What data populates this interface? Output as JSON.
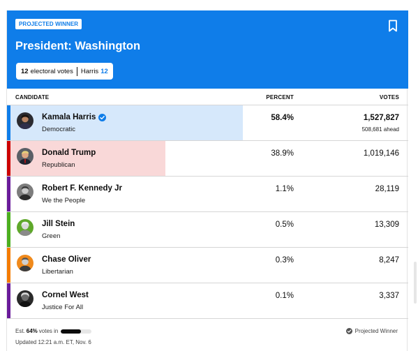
{
  "header": {
    "badge": "PROJECTED WINNER",
    "title": "President: Washington",
    "electoral_votes_count": "12",
    "electoral_votes_label": "electoral votes",
    "winner_name": "Harris",
    "winner_votes": "12"
  },
  "columns": {
    "candidate": "CANDIDATE",
    "percent": "PERCENT",
    "votes": "VOTES"
  },
  "candidates": [
    {
      "name": "Kamala Harris",
      "party": "Democratic",
      "percent": "58.4%",
      "votes": "1,527,827",
      "ahead": "508,681 ahead",
      "pct_value": 58.4,
      "color": "#0f7de9",
      "bar_color": "#d6e8fb"
    },
    {
      "name": "Donald Trump",
      "party": "Republican",
      "percent": "38.9%",
      "votes": "1,019,146",
      "pct_value": 38.9,
      "color": "#cc0000",
      "bar_color": "#f9d8d8"
    },
    {
      "name": "Robert F. Kennedy Jr",
      "party": "We the People",
      "percent": "1.1%",
      "votes": "28,119",
      "pct_value": 1.1,
      "color": "#6a1b9a"
    },
    {
      "name": "Jill Stein",
      "party": "Green",
      "percent": "0.5%",
      "votes": "13,309",
      "pct_value": 0.5,
      "color": "#4caf1f"
    },
    {
      "name": "Chase Oliver",
      "party": "Libertarian",
      "percent": "0.3%",
      "votes": "8,247",
      "pct_value": 0.3,
      "color": "#f57c00"
    },
    {
      "name": "Cornel West",
      "party": "Justice For All",
      "percent": "0.1%",
      "votes": "3,337",
      "pct_value": 0.1,
      "color": "#6a1b9a"
    }
  ],
  "footer": {
    "est_prefix": "Est.",
    "est_value": "64%",
    "est_suffix": "votes in",
    "est_fraction": 0.64,
    "updated": "Updated 12:21 a.m. ET, Nov. 6",
    "projected": "Projected Winner"
  }
}
